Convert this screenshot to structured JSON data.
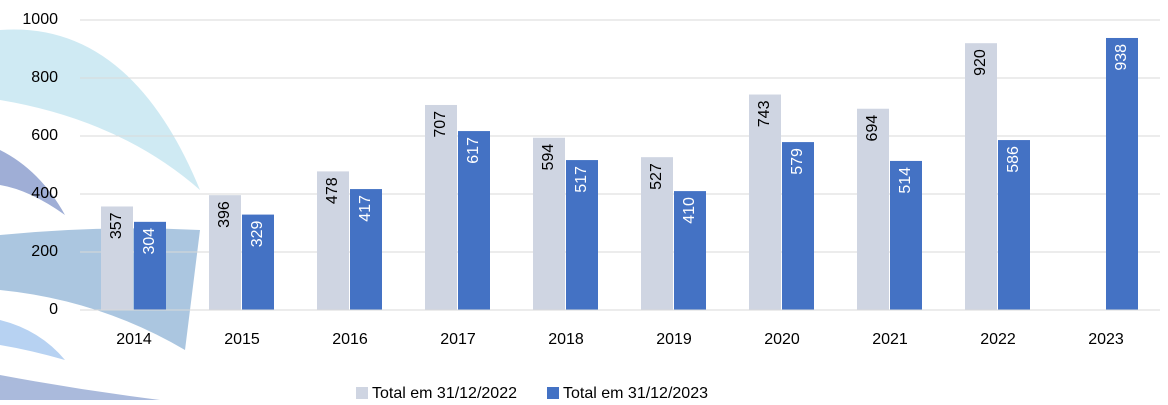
{
  "chart_data": {
    "type": "bar",
    "categories": [
      "2014",
      "2015",
      "2016",
      "2017",
      "2018",
      "2019",
      "2020",
      "2021",
      "2022",
      "2023"
    ],
    "series": [
      {
        "name": "Total em 31/12/2022",
        "color": "#cfd5e2",
        "label_color": "#000000",
        "values": [
          357,
          396,
          478,
          707,
          594,
          527,
          743,
          694,
          920,
          null
        ]
      },
      {
        "name": "Total em 31/12/2023",
        "color": "#4472c4",
        "label_color": "#ffffff",
        "values": [
          304,
          329,
          417,
          617,
          517,
          410,
          579,
          514,
          586,
          938
        ]
      }
    ],
    "ylim": [
      0,
      1000
    ],
    "yticks": [
      0,
      200,
      400,
      600,
      800,
      1000
    ],
    "grid": true,
    "legend": "bottom"
  }
}
